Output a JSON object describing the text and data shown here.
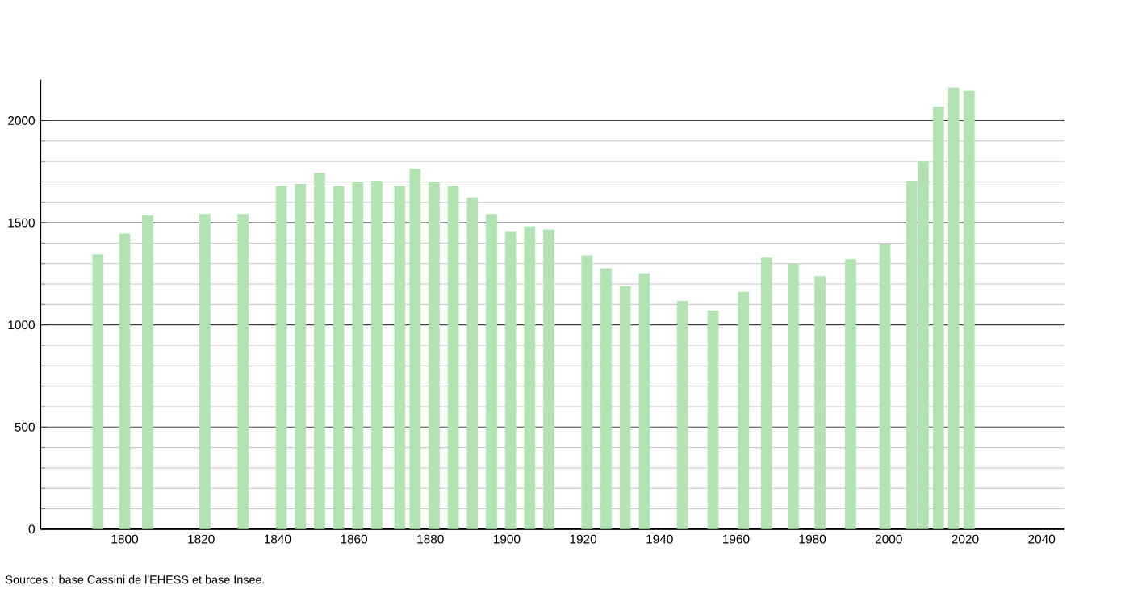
{
  "chart_data": {
    "type": "bar",
    "x": [
      1793,
      1800,
      1806,
      1821,
      1831,
      1841,
      1846,
      1851,
      1856,
      1861,
      1866,
      1872,
      1876,
      1881,
      1886,
      1891,
      1896,
      1901,
      1906,
      1911,
      1921,
      1926,
      1931,
      1936,
      1946,
      1954,
      1962,
      1968,
      1975,
      1982,
      1990,
      1999,
      2006,
      2009,
      2013,
      2017,
      2021
    ],
    "values": [
      1345,
      1447,
      1536,
      1543,
      1543,
      1680,
      1690,
      1744,
      1680,
      1700,
      1706,
      1680,
      1764,
      1700,
      1680,
      1624,
      1543,
      1459,
      1482,
      1467,
      1340,
      1277,
      1188,
      1254,
      1117,
      1071,
      1162,
      1330,
      1299,
      1239,
      1322,
      1396,
      1706,
      1802,
      2069,
      2162,
      2145
    ],
    "color": "#b3e3b3",
    "xlim": [
      1778,
      2046
    ],
    "ylim": [
      0,
      2200
    ],
    "xticks": [
      1800,
      1820,
      1840,
      1860,
      1880,
      1900,
      1920,
      1940,
      1960,
      1980,
      2000,
      2020,
      2040
    ],
    "yticks": [
      0,
      500,
      1000,
      1500,
      2000
    ],
    "grid": "y",
    "annotations": [
      "Sources : base Cassini de l'EHESS et base Insee."
    ]
  }
}
